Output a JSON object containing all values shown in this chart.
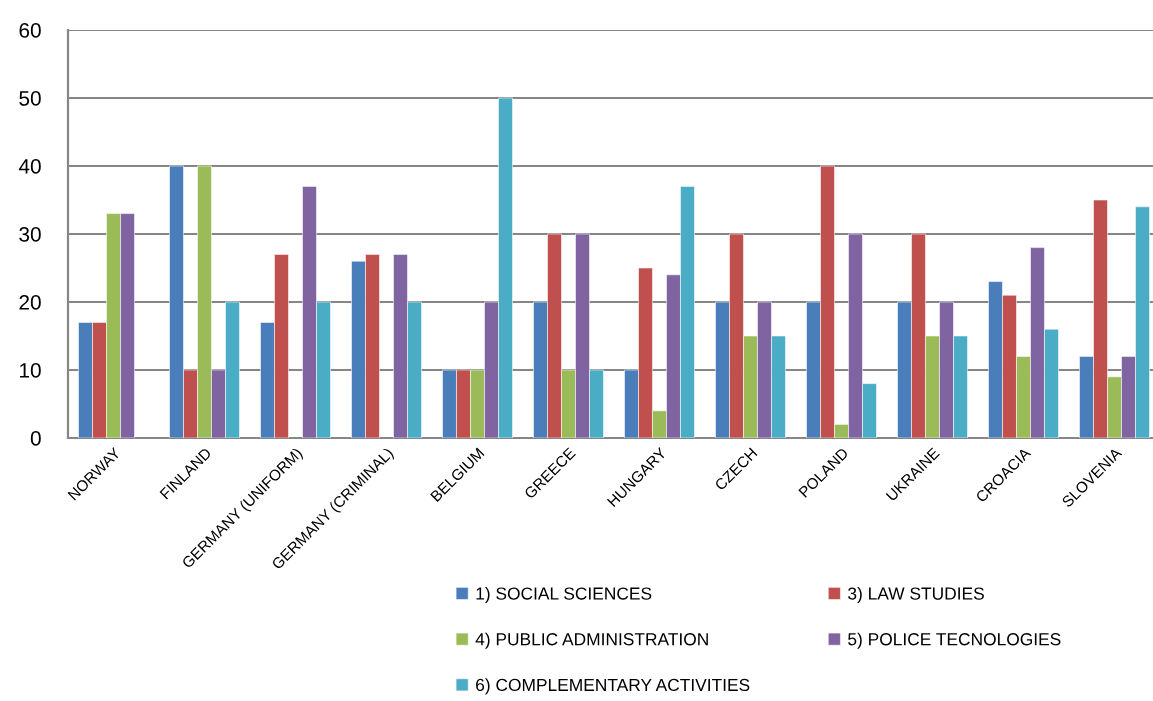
{
  "chart_data": {
    "type": "bar",
    "categories": [
      "NORWAY",
      "FINLAND",
      "GERMANY (UNIFORM)",
      "GERMANY (CRIMINAL)",
      "BELGIUM",
      "GREECE",
      "HUNGARY",
      "CZECH",
      "POLAND",
      "UKRAINE",
      "CROACIA",
      "SLOVENIA"
    ],
    "series": [
      {
        "name": "1) SOCIAL SCIENCES",
        "color": "#4a7ebb",
        "values": [
          17,
          40,
          17,
          26,
          10,
          20,
          10,
          20,
          20,
          20,
          23,
          12
        ]
      },
      {
        "name": "3) LAW STUDIES",
        "color": "#c0504d",
        "values": [
          17,
          10,
          27,
          27,
          10,
          30,
          25,
          30,
          40,
          30,
          21,
          35
        ]
      },
      {
        "name": "4) PUBLIC ADMINISTRATION",
        "color": "#9bbb59",
        "values": [
          33,
          40,
          null,
          null,
          10,
          10,
          4,
          15,
          2,
          15,
          12,
          9
        ]
      },
      {
        "name": "5) POLICE TECNOLOGIES",
        "color": "#8064a2",
        "values": [
          33,
          10,
          37,
          27,
          20,
          30,
          24,
          20,
          30,
          20,
          28,
          12
        ]
      },
      {
        "name": "6) COMPLEMENTARY ACTIVITIES",
        "color": "#4bacc6",
        "values": [
          null,
          20,
          20,
          20,
          50,
          10,
          37,
          15,
          8,
          15,
          16,
          34
        ]
      }
    ],
    "ylim": [
      0,
      60
    ],
    "yticks": [
      0,
      10,
      20,
      30,
      40,
      50,
      60
    ],
    "grid": "y",
    "legend": "bottom"
  }
}
